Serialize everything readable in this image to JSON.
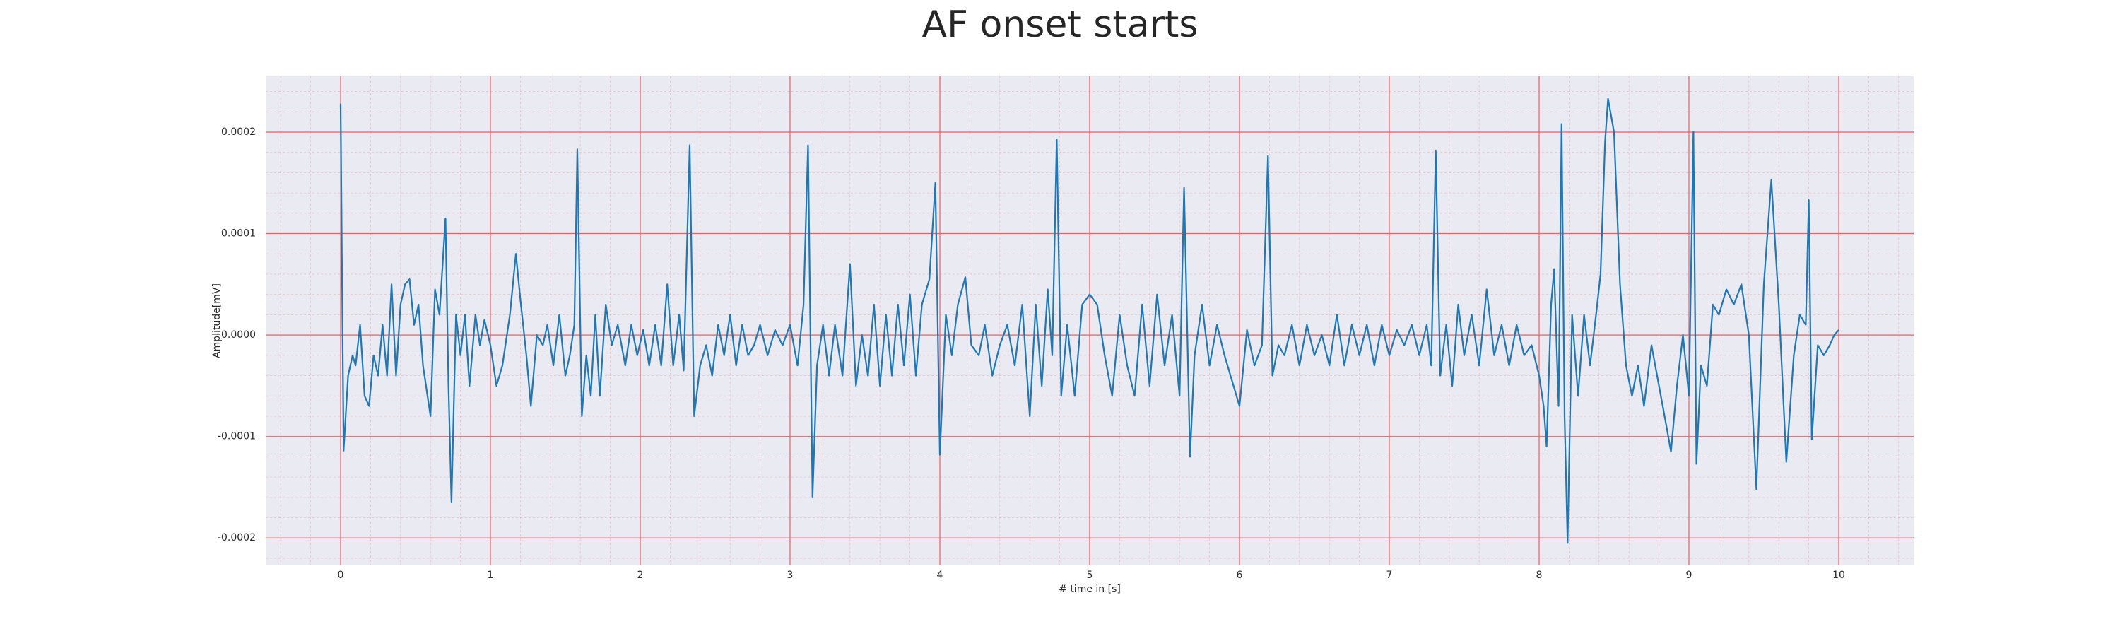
{
  "chart_data": {
    "type": "line",
    "title": "AF onset starts",
    "xlabel": "# time in [s]",
    "ylabel": "Amplitude[mV]",
    "xlim": [
      -0.5,
      10.5
    ],
    "ylim": [
      -0.000227,
      0.000255
    ],
    "xticks": [
      0,
      1,
      2,
      3,
      4,
      5,
      6,
      7,
      8,
      9,
      10
    ],
    "yticks": [
      -0.0002,
      -0.0001,
      {
        "value": 0,
        "label": "0.0000"
      },
      0.0001,
      0.0002
    ],
    "grid": true,
    "minor_grid": true,
    "grid_color": "#f25c5c",
    "background": "#eaeaf2",
    "x": [
      0,
      0.01,
      0.02,
      0.05,
      0.08,
      0.1,
      0.13,
      0.16,
      0.19,
      0.22,
      0.25,
      0.28,
      0.31,
      0.34,
      0.37,
      0.4,
      0.43,
      0.46,
      0.49,
      0.52,
      0.55,
      0.6,
      0.63,
      0.66,
      0.7,
      0.72,
      0.74,
      0.77,
      0.8,
      0.83,
      0.86,
      0.9,
      0.93,
      0.96,
      1.0,
      1.04,
      1.08,
      1.13,
      1.17,
      1.2,
      1.24,
      1.27,
      1.31,
      1.35,
      1.38,
      1.42,
      1.46,
      1.5,
      1.53,
      1.56,
      1.58,
      1.61,
      1.64,
      1.67,
      1.7,
      1.73,
      1.77,
      1.81,
      1.85,
      1.9,
      1.94,
      1.98,
      2.02,
      2.06,
      2.1,
      2.14,
      2.18,
      2.22,
      2.26,
      2.29,
      2.33,
      2.36,
      2.4,
      2.44,
      2.48,
      2.52,
      2.56,
      2.6,
      2.64,
      2.68,
      2.72,
      2.76,
      2.8,
      2.85,
      2.9,
      2.95,
      3.0,
      3.05,
      3.09,
      3.12,
      3.15,
      3.18,
      3.22,
      3.26,
      3.3,
      3.35,
      3.4,
      3.44,
      3.48,
      3.52,
      3.56,
      3.6,
      3.64,
      3.68,
      3.72,
      3.76,
      3.8,
      3.84,
      3.88,
      3.93,
      3.97,
      4.0,
      4.04,
      4.08,
      4.12,
      4.17,
      4.21,
      4.26,
      4.3,
      4.35,
      4.4,
      4.45,
      4.5,
      4.55,
      4.6,
      4.64,
      4.68,
      4.72,
      4.75,
      4.78,
      4.81,
      4.85,
      4.9,
      4.95,
      5.0,
      5.05,
      5.1,
      5.15,
      5.2,
      5.25,
      5.3,
      5.35,
      5.4,
      5.45,
      5.5,
      5.55,
      5.6,
      5.63,
      5.67,
      5.7,
      5.75,
      5.8,
      5.85,
      5.9,
      6.0,
      6.05,
      6.1,
      6.15,
      6.19,
      6.22,
      6.26,
      6.3,
      6.35,
      6.4,
      6.45,
      6.5,
      6.55,
      6.6,
      6.65,
      6.7,
      6.75,
      6.8,
      6.85,
      6.9,
      6.95,
      7.0,
      7.05,
      7.1,
      7.15,
      7.2,
      7.25,
      7.28,
      7.31,
      7.34,
      7.38,
      7.42,
      7.46,
      7.5,
      7.55,
      7.6,
      7.65,
      7.7,
      7.75,
      7.8,
      7.85,
      7.9,
      7.95,
      8.0,
      8.03,
      8.05,
      8.08,
      8.1,
      8.13,
      8.15,
      8.17,
      8.19,
      8.22,
      8.26,
      8.3,
      8.34,
      8.38,
      8.41,
      8.44,
      8.46,
      8.5,
      8.54,
      8.58,
      8.62,
      8.66,
      8.7,
      8.75,
      8.8,
      8.85,
      8.88,
      8.92,
      8.96,
      9.0,
      9.03,
      9.05,
      9.08,
      9.12,
      9.16,
      9.2,
      9.25,
      9.3,
      9.35,
      9.4,
      9.45,
      9.5,
      9.55,
      9.6,
      9.65,
      9.7,
      9.74,
      9.78,
      9.8,
      9.82,
      9.86,
      9.9,
      9.94,
      9.97,
      10.0
    ],
    "series": [
      {
        "color": "#1f77b4",
        "values": [
          0.000228,
          5e-05,
          -0.000114,
          -4e-05,
          -2e-05,
          -3e-05,
          1e-05,
          -6e-05,
          -7e-05,
          -2e-05,
          -4e-05,
          1e-05,
          -4e-05,
          5e-05,
          -4e-05,
          3e-05,
          5e-05,
          5.5e-05,
          1e-05,
          3e-05,
          -3e-05,
          -8e-05,
          4.5e-05,
          2e-05,
          0.000115,
          -5e-05,
          -0.000165,
          2e-05,
          -2e-05,
          2e-05,
          -5e-05,
          2e-05,
          -1e-05,
          1.5e-05,
          -1e-05,
          -5e-05,
          -3e-05,
          2e-05,
          8e-05,
          3.5e-05,
          -2e-05,
          -7e-05,
          0,
          -1e-05,
          1e-05,
          -3e-05,
          2e-05,
          -4e-05,
          -2e-05,
          1e-05,
          0.000183,
          -8e-05,
          -2e-05,
          -6e-05,
          2e-05,
          -6e-05,
          3e-05,
          -1e-05,
          1e-05,
          -3e-05,
          1e-05,
          -2e-05,
          5e-06,
          -3e-05,
          1e-05,
          -3e-05,
          5e-05,
          -3e-05,
          2e-05,
          -3.5e-05,
          0.000187,
          -8e-05,
          -3e-05,
          -1e-05,
          -4e-05,
          1e-05,
          -2e-05,
          2e-05,
          -3e-05,
          1e-05,
          -2e-05,
          -1e-05,
          1e-05,
          -2e-05,
          5e-06,
          -1e-05,
          1e-05,
          -3e-05,
          3e-05,
          0.000187,
          -0.00016,
          -3e-05,
          1e-05,
          -4e-05,
          1e-05,
          -4e-05,
          7e-05,
          -5e-05,
          0,
          -4e-05,
          3e-05,
          -5e-05,
          2e-05,
          -4e-05,
          3e-05,
          -3e-05,
          4e-05,
          -4e-05,
          3e-05,
          5.5e-05,
          0.00015,
          -0.000118,
          2e-05,
          -2e-05,
          3e-05,
          5.7e-05,
          -1e-05,
          -2e-05,
          1e-05,
          -4e-05,
          -1e-05,
          1e-05,
          -3e-05,
          3e-05,
          -8e-05,
          3e-05,
          -5e-05,
          4.5e-05,
          -2e-05,
          0.000193,
          -6e-05,
          1e-05,
          -6e-05,
          3e-05,
          4e-05,
          3e-05,
          -2e-05,
          -6e-05,
          2e-05,
          -3e-05,
          -6e-05,
          3e-05,
          -5e-05,
          4e-05,
          -3e-05,
          2e-05,
          -6e-05,
          0.000145,
          -0.00012,
          -2e-05,
          3e-05,
          -3e-05,
          1e-05,
          -2e-05,
          -7e-05,
          5e-06,
          -3e-05,
          -1e-05,
          0.000177,
          -4e-05,
          -1e-05,
          -2e-05,
          1e-05,
          -3e-05,
          1e-05,
          -2e-05,
          0,
          -3e-05,
          2e-05,
          -3e-05,
          1e-05,
          -2e-05,
          1e-05,
          -3e-05,
          1e-05,
          -2e-05,
          5e-06,
          -1e-05,
          1e-05,
          -2e-05,
          1e-05,
          -3e-05,
          0.000182,
          -4e-05,
          1e-05,
          -5e-05,
          3e-05,
          -2e-05,
          2e-05,
          -3e-05,
          4.5e-05,
          -2e-05,
          1e-05,
          -3e-05,
          1e-05,
          -2e-05,
          -1e-05,
          -4e-05,
          -7e-05,
          -0.00011,
          3e-05,
          6.5e-05,
          -7e-05,
          0.000208,
          -8e-05,
          -0.000205,
          2e-05,
          -6e-05,
          2e-05,
          -3e-05,
          2e-05,
          6e-05,
          0.00019,
          0.000233,
          0.0002,
          5e-05,
          -3e-05,
          -6e-05,
          -3e-05,
          -7e-05,
          -1e-05,
          -5e-05,
          -9e-05,
          -0.000115,
          -5e-05,
          0,
          -6e-05,
          0.0002,
          -0.000127,
          -3e-05,
          -5e-05,
          3e-05,
          2e-05,
          4.5e-05,
          3e-05,
          5e-05,
          0,
          -0.000152,
          5e-05,
          0.000153,
          3e-05,
          -0.000125,
          -2e-05,
          2e-05,
          1e-05,
          0.000133,
          -0.000103,
          -1e-05,
          -2e-05,
          -1e-05,
          0,
          5e-06
        ]
      }
    ]
  }
}
